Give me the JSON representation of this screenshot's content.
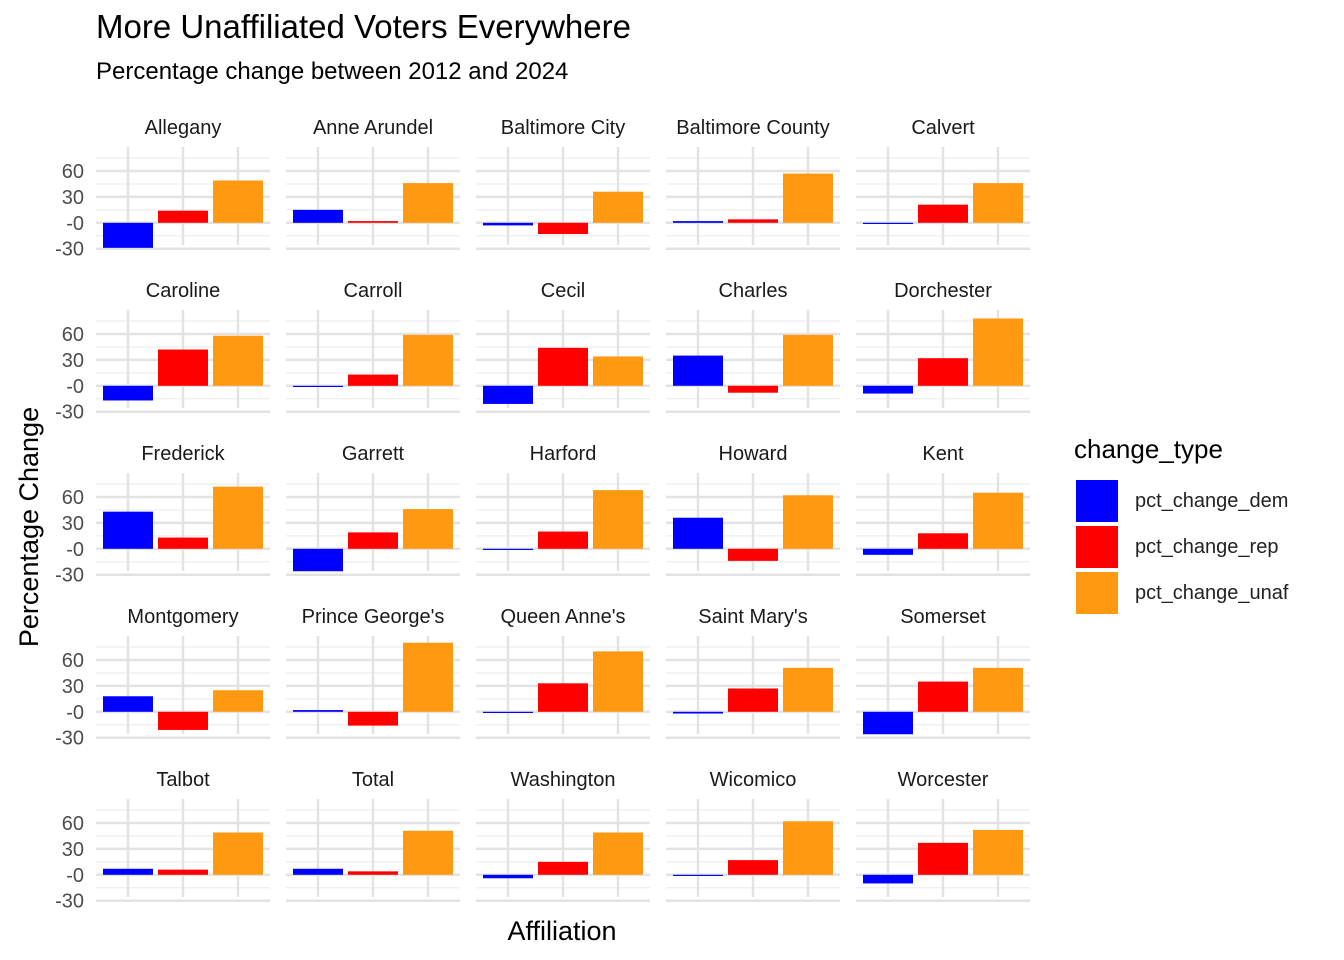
{
  "title": "More Unaffiliated Voters Everywhere",
  "subtitle": "Percentage change between 2012 and 2024",
  "legend": {
    "title": "change_type",
    "items": [
      {
        "label": "pct_change_dem",
        "color": "#0000FF"
      },
      {
        "label": "pct_change_rep",
        "color": "#FF0000"
      },
      {
        "label": "pct_change_unaf",
        "color": "#FF9912"
      }
    ]
  },
  "chart_data": {
    "type": "bar",
    "facet": "wrap",
    "ncol": 5,
    "xlabel": "Affiliation",
    "ylabel": "Percentage Change",
    "y_ticks": [
      -30,
      0,
      30,
      60
    ],
    "y_tick_labels": [
      "-30",
      "-0",
      "30",
      "60"
    ],
    "grid": true,
    "legend_position": "right",
    "series_names": [
      "pct_change_dem",
      "pct_change_rep",
      "pct_change_unaf"
    ],
    "panels": [
      {
        "name": "Allegany",
        "values": [
          -29,
          14,
          49
        ]
      },
      {
        "name": "Anne Arundel",
        "values": [
          15,
          2,
          46
        ]
      },
      {
        "name": "Baltimore City",
        "values": [
          -3,
          -13,
          36
        ]
      },
      {
        "name": "Baltimore County",
        "values": [
          2,
          4,
          57
        ]
      },
      {
        "name": "Calvert",
        "values": [
          -1,
          21,
          46
        ]
      },
      {
        "name": "Caroline",
        "values": [
          -17,
          42,
          58
        ]
      },
      {
        "name": "Carroll",
        "values": [
          -1,
          13,
          59
        ]
      },
      {
        "name": "Cecil",
        "values": [
          -21,
          44,
          34
        ]
      },
      {
        "name": "Charles",
        "values": [
          35,
          -8,
          59
        ]
      },
      {
        "name": "Dorchester",
        "values": [
          -9,
          32,
          78
        ]
      },
      {
        "name": "Frederick",
        "values": [
          43,
          13,
          72
        ]
      },
      {
        "name": "Garrett",
        "values": [
          -26,
          19,
          46
        ]
      },
      {
        "name": "Harford",
        "values": [
          -1,
          20,
          68
        ]
      },
      {
        "name": "Howard",
        "values": [
          36,
          -14,
          62
        ]
      },
      {
        "name": "Kent",
        "values": [
          -7,
          18,
          65
        ]
      },
      {
        "name": "Montgomery",
        "values": [
          18,
          -21,
          25
        ]
      },
      {
        "name": "Prince George's",
        "values": [
          2,
          -16,
          80
        ]
      },
      {
        "name": "Queen Anne's",
        "values": [
          -1,
          33,
          70
        ]
      },
      {
        "name": "Saint Mary's",
        "values": [
          -2,
          27,
          51
        ]
      },
      {
        "name": "Somerset",
        "values": [
          -26,
          35,
          51
        ]
      },
      {
        "name": "Talbot",
        "values": [
          7,
          6,
          49
        ]
      },
      {
        "name": "Total",
        "values": [
          7,
          4,
          51
        ]
      },
      {
        "name": "Washington",
        "values": [
          -4,
          15,
          49
        ]
      },
      {
        "name": "Wicomico",
        "values": [
          -1,
          17,
          62
        ]
      },
      {
        "name": "Worcester",
        "values": [
          -10,
          37,
          52
        ]
      }
    ]
  }
}
